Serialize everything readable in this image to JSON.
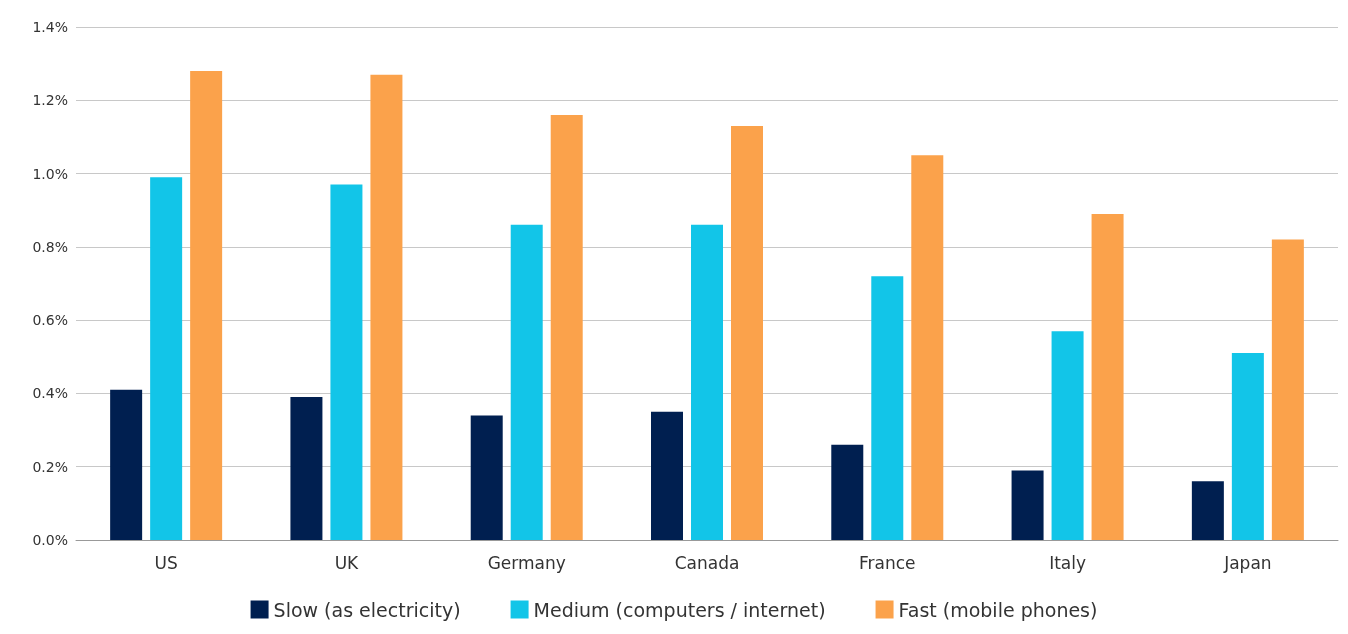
{
  "chart_data": {
    "type": "bar",
    "categories": [
      "US",
      "UK",
      "Germany",
      "Canada",
      "France",
      "Italy",
      "Japan"
    ],
    "series": [
      {
        "name": "Slow (as electricity)",
        "color": "#001f50",
        "values": [
          0.41,
          0.39,
          0.34,
          0.35,
          0.26,
          0.19,
          0.16
        ]
      },
      {
        "name": "Medium (computers / internet)",
        "color": "#12c5e8",
        "values": [
          0.99,
          0.97,
          0.86,
          0.86,
          0.72,
          0.57,
          0.51
        ]
      },
      {
        "name": "Fast (mobile phones)",
        "color": "#fba24b",
        "values": [
          1.28,
          1.27,
          1.16,
          1.13,
          1.05,
          0.89,
          0.82
        ]
      }
    ],
    "ylim": [
      0,
      1.4
    ],
    "yticks": [
      {
        "value": 0,
        "label": "0.0%"
      },
      {
        "value": 0.2,
        "label": "0.2%"
      },
      {
        "value": 0.4,
        "label": "0.4%"
      },
      {
        "value": 0.6,
        "label": "0.6%"
      },
      {
        "value": 0.8,
        "label": "0.8%"
      },
      {
        "value": 1.0,
        "label": "1.0%"
      },
      {
        "value": 1.2,
        "label": "1.2%"
      },
      {
        "value": 1.4,
        "label": "1.4%"
      }
    ],
    "grid": "y",
    "legend": "bottom"
  }
}
